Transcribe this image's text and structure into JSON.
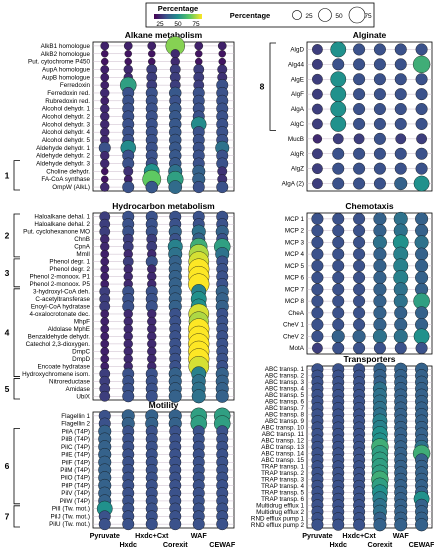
{
  "legend": {
    "color_title": "Percentage",
    "color_ticks": [
      "25",
      "50",
      "75"
    ],
    "size_title": "Percentage",
    "size_ticks": [
      "25",
      "50",
      "75"
    ],
    "colormap": [
      "#440154",
      "#3b528b",
      "#21918c",
      "#5ec962",
      "#fde725"
    ]
  },
  "x_labels": [
    "Pyruvate",
    "Hxdc",
    "Hxdc+Cxt",
    "Corexit",
    "WAF",
    "CEWAF"
  ],
  "chart_data": [
    {
      "type": "scatter",
      "title": "Alkane metabolism",
      "rows": [
        "AlkB1 homologue",
        "AlkB2 homologue",
        "Put. cytochrome P450",
        "AupA homologue",
        "AupB homologue",
        "Ferredoxin",
        "Ferredoxin red.",
        "Rubredoxin red.",
        "Alcohol dehydr. 1",
        "Alcohol dehydr. 2",
        "Alcohol dehydr. 3",
        "Alcohol dehydr. 4",
        "Alcohol dehydr. 5",
        "Aldehyde dehydr. 1",
        "Aldehyde dehydr. 2",
        "Aldehyde dehydr. 3",
        "Choline dehydr.",
        "FA-CoA synthase",
        "OmpW (AlkL)"
      ],
      "values": [
        [
          8,
          8,
          8,
          65,
          8,
          8
        ],
        [
          5,
          5,
          5,
          10,
          5,
          5
        ],
        [
          5,
          5,
          5,
          10,
          5,
          5
        ],
        [
          8,
          10,
          15,
          15,
          15,
          12
        ],
        [
          8,
          10,
          15,
          15,
          15,
          12
        ],
        [
          8,
          45,
          15,
          15,
          15,
          20
        ],
        [
          10,
          20,
          20,
          22,
          20,
          20
        ],
        [
          8,
          20,
          20,
          20,
          20,
          20
        ],
        [
          10,
          20,
          20,
          22,
          20,
          20
        ],
        [
          10,
          20,
          20,
          22,
          20,
          20
        ],
        [
          10,
          20,
          20,
          22,
          38,
          20
        ],
        [
          10,
          20,
          20,
          22,
          20,
          20
        ],
        [
          10,
          20,
          20,
          22,
          20,
          20
        ],
        [
          20,
          38,
          20,
          22,
          20,
          30
        ],
        [
          10,
          20,
          20,
          22,
          20,
          20
        ],
        [
          10,
          20,
          20,
          22,
          20,
          20
        ],
        [
          5,
          12,
          40,
          30,
          25,
          12
        ],
        [
          5,
          8,
          60,
          45,
          25,
          12
        ],
        [
          10,
          20,
          22,
          28,
          20,
          20
        ]
      ],
      "brackets": [
        {
          "label": "1",
          "from": 15,
          "to": 18
        }
      ]
    },
    {
      "type": "scatter",
      "title": "Hydrocarbon metabolism",
      "rows": [
        "Haloalkane dehal. 1",
        "Haloalkane dehal. 2",
        "Put. cyclohexanone MO",
        "ChnB",
        "CpnA",
        "MmlI",
        "Phenol degr. 1",
        "Phenol degr. 2",
        "Phenol 2-monoox. P1",
        "Phenol 2-monoox. P5",
        "3-hydroxyl-CoA deh.",
        "C-acetyltransferase",
        "Enoyl-CoA hydratase",
        "4-oxalocrotonate dec.",
        "MhpF",
        "Aldolase MphE",
        "Benzaldehyde dehydr.",
        "Catechol 2,3-dioxygen.",
        "DmpC",
        "DmpD",
        "Encoate hydratase",
        "Hydroxychromene isom.",
        "Nitroreductase",
        "Amidase",
        "UbiX"
      ],
      "values": [
        [
          15,
          20,
          20,
          20,
          20,
          20
        ],
        [
          15,
          20,
          20,
          20,
          20,
          20
        ],
        [
          15,
          20,
          20,
          25,
          30,
          25
        ],
        [
          10,
          15,
          15,
          20,
          25,
          20
        ],
        [
          10,
          15,
          15,
          35,
          50,
          45
        ],
        [
          8,
          10,
          10,
          30,
          70,
          30
        ],
        [
          8,
          15,
          20,
          25,
          75,
          20
        ],
        [
          8,
          10,
          10,
          25,
          80,
          20
        ],
        [
          8,
          10,
          10,
          25,
          80,
          20
        ],
        [
          8,
          10,
          10,
          25,
          80,
          20
        ],
        [
          15,
          20,
          20,
          25,
          35,
          25
        ],
        [
          15,
          20,
          20,
          25,
          40,
          25
        ],
        [
          15,
          20,
          20,
          25,
          40,
          25
        ],
        [
          8,
          10,
          10,
          20,
          75,
          20
        ],
        [
          8,
          10,
          10,
          20,
          70,
          20
        ],
        [
          8,
          10,
          10,
          20,
          80,
          20
        ],
        [
          8,
          10,
          10,
          20,
          80,
          20
        ],
        [
          8,
          10,
          10,
          20,
          80,
          20
        ],
        [
          8,
          10,
          10,
          20,
          80,
          20
        ],
        [
          8,
          10,
          10,
          20,
          80,
          20
        ],
        [
          8,
          10,
          10,
          20,
          75,
          20
        ],
        [
          15,
          20,
          20,
          25,
          35,
          25
        ],
        [
          15,
          20,
          20,
          25,
          30,
          25
        ],
        [
          15,
          20,
          20,
          25,
          30,
          25
        ],
        [
          15,
          20,
          20,
          25,
          30,
          25
        ]
      ],
      "brackets": [
        {
          "label": "2",
          "from": 0,
          "to": 5
        },
        {
          "label": "3",
          "from": 6,
          "to": 9
        },
        {
          "label": "4",
          "from": 10,
          "to": 21
        },
        {
          "label": "5",
          "from": 22,
          "to": 24
        }
      ]
    },
    {
      "type": "scatter",
      "title": "Motility",
      "rows": [
        "Flagellin 1",
        "Flagellin 2",
        "PilA (T4P)",
        "PilB (T4P)",
        "PilC (T4P)",
        "PilE (T4P)",
        "PilF (T4P)",
        "PilM (T4P)",
        "PilO (T4P)",
        "PilP (T4P)",
        "PilV (T4P)",
        "PilW (T4P)",
        "PilI (Tw. mot.)",
        "PilJ (Tw. mot.)",
        "PilU (Tw. mot.)"
      ],
      "values": [
        [
          20,
          25,
          25,
          25,
          45,
          45
        ],
        [
          20,
          25,
          25,
          25,
          45,
          45
        ],
        [
          25,
          20,
          20,
          20,
          20,
          20
        ],
        [
          25,
          20,
          20,
          20,
          20,
          20
        ],
        [
          25,
          20,
          20,
          20,
          20,
          20
        ],
        [
          25,
          20,
          20,
          20,
          20,
          20
        ],
        [
          25,
          20,
          20,
          20,
          20,
          20
        ],
        [
          25,
          20,
          20,
          20,
          20,
          20
        ],
        [
          25,
          20,
          20,
          20,
          20,
          20
        ],
        [
          25,
          20,
          20,
          20,
          20,
          20
        ],
        [
          25,
          20,
          20,
          20,
          20,
          20
        ],
        [
          25,
          20,
          20,
          20,
          20,
          20
        ],
        [
          40,
          20,
          20,
          20,
          20,
          20
        ],
        [
          20,
          20,
          20,
          20,
          20,
          20
        ],
        [
          20,
          20,
          20,
          20,
          20,
          20
        ]
      ],
      "brackets": [
        {
          "label": "6",
          "from": 2,
          "to": 11
        },
        {
          "label": "7",
          "from": 12,
          "to": 14
        }
      ]
    },
    {
      "type": "scatter",
      "title": "Alginate",
      "rows": [
        "AlgD",
        "Alg44",
        "AlgE",
        "AlgF",
        "AlgA",
        "AlgC",
        "MucB",
        "AlgR",
        "AlgZ",
        "AlgA (2)"
      ],
      "values": [
        [
          15,
          40,
          20,
          20,
          20,
          20
        ],
        [
          15,
          20,
          20,
          20,
          20,
          50
        ],
        [
          15,
          40,
          20,
          20,
          20,
          20
        ],
        [
          15,
          40,
          20,
          20,
          20,
          20
        ],
        [
          15,
          40,
          20,
          20,
          20,
          20
        ],
        [
          15,
          40,
          20,
          20,
          20,
          20
        ],
        [
          10,
          15,
          15,
          20,
          15,
          15
        ],
        [
          15,
          20,
          20,
          20,
          20,
          20
        ],
        [
          15,
          20,
          20,
          20,
          20,
          20
        ],
        [
          15,
          20,
          20,
          20,
          25,
          40
        ]
      ],
      "brackets": [
        {
          "label": "8",
          "from": 0,
          "to": 5
        }
      ]
    },
    {
      "type": "scatter",
      "title": "Chemotaxis",
      "rows": [
        "MCP 1",
        "MCP 2",
        "MCP 3",
        "MCP 4",
        "MCP 5",
        "MCP 6",
        "MCP 7",
        "MCP 8",
        "CheA",
        "CheV 1",
        "CheV 2",
        "MotA"
      ],
      "values": [
        [
          20,
          20,
          20,
          25,
          30,
          25
        ],
        [
          20,
          20,
          20,
          25,
          30,
          25
        ],
        [
          20,
          20,
          20,
          30,
          40,
          30
        ],
        [
          20,
          20,
          20,
          25,
          35,
          25
        ],
        [
          20,
          20,
          20,
          25,
          35,
          25
        ],
        [
          20,
          20,
          20,
          25,
          35,
          25
        ],
        [
          20,
          20,
          20,
          25,
          30,
          25
        ],
        [
          20,
          20,
          20,
          25,
          30,
          45
        ],
        [
          20,
          20,
          20,
          25,
          25,
          25
        ],
        [
          20,
          20,
          20,
          25,
          25,
          25
        ],
        [
          20,
          25,
          25,
          30,
          30,
          40
        ],
        [
          15,
          20,
          20,
          20,
          20,
          20
        ]
      ],
      "brackets": []
    },
    {
      "type": "scatter",
      "title": "Transporters",
      "rows": [
        "ABC transp. 1",
        "ABC transp. 2",
        "ABC transp. 3",
        "ABC transp. 4",
        "ABC transp. 5",
        "ABC transp. 6",
        "ABC transp. 7",
        "ABC transp. 8",
        "ABC transp. 9",
        "ABC transp. 10",
        "ABC transp. 11",
        "ABC transp. 12",
        "ABC transp. 13",
        "ABC transp. 14",
        "ABC transp. 15",
        "TRAP transp. 1",
        "TRAP transp. 2",
        "TRAP transp. 3",
        "TRAP transp. 4",
        "TRAP transp. 5",
        "TRAP transp. 6",
        "Multidrug efflux 1",
        "Multidrug efflux 2",
        "RND efflux pump 1",
        "RND efflux pump 2"
      ],
      "values": [
        [
          20,
          20,
          20,
          25,
          25,
          25
        ],
        [
          20,
          20,
          20,
          25,
          25,
          25
        ],
        [
          20,
          20,
          20,
          25,
          25,
          25
        ],
        [
          20,
          20,
          20,
          30,
          25,
          25
        ],
        [
          20,
          20,
          20,
          30,
          25,
          25
        ],
        [
          20,
          20,
          20,
          30,
          25,
          25
        ],
        [
          20,
          20,
          20,
          30,
          25,
          25
        ],
        [
          20,
          20,
          20,
          30,
          25,
          25
        ],
        [
          20,
          20,
          20,
          35,
          25,
          25
        ],
        [
          20,
          20,
          20,
          35,
          25,
          25
        ],
        [
          20,
          20,
          20,
          40,
          25,
          25
        ],
        [
          20,
          20,
          20,
          40,
          25,
          25
        ],
        [
          20,
          20,
          20,
          50,
          25,
          30
        ],
        [
          20,
          20,
          20,
          45,
          25,
          50
        ],
        [
          20,
          20,
          20,
          45,
          25,
          25
        ],
        [
          20,
          20,
          20,
          45,
          25,
          25
        ],
        [
          20,
          20,
          20,
          45,
          25,
          25
        ],
        [
          20,
          20,
          20,
          50,
          25,
          25
        ],
        [
          20,
          20,
          20,
          45,
          25,
          25
        ],
        [
          20,
          20,
          20,
          40,
          25,
          25
        ],
        [
          20,
          20,
          20,
          35,
          25,
          40
        ],
        [
          20,
          20,
          20,
          30,
          25,
          25
        ],
        [
          20,
          20,
          20,
          30,
          25,
          25
        ],
        [
          20,
          20,
          20,
          25,
          25,
          25
        ],
        [
          20,
          20,
          20,
          25,
          25,
          25
        ]
      ],
      "brackets": []
    }
  ]
}
